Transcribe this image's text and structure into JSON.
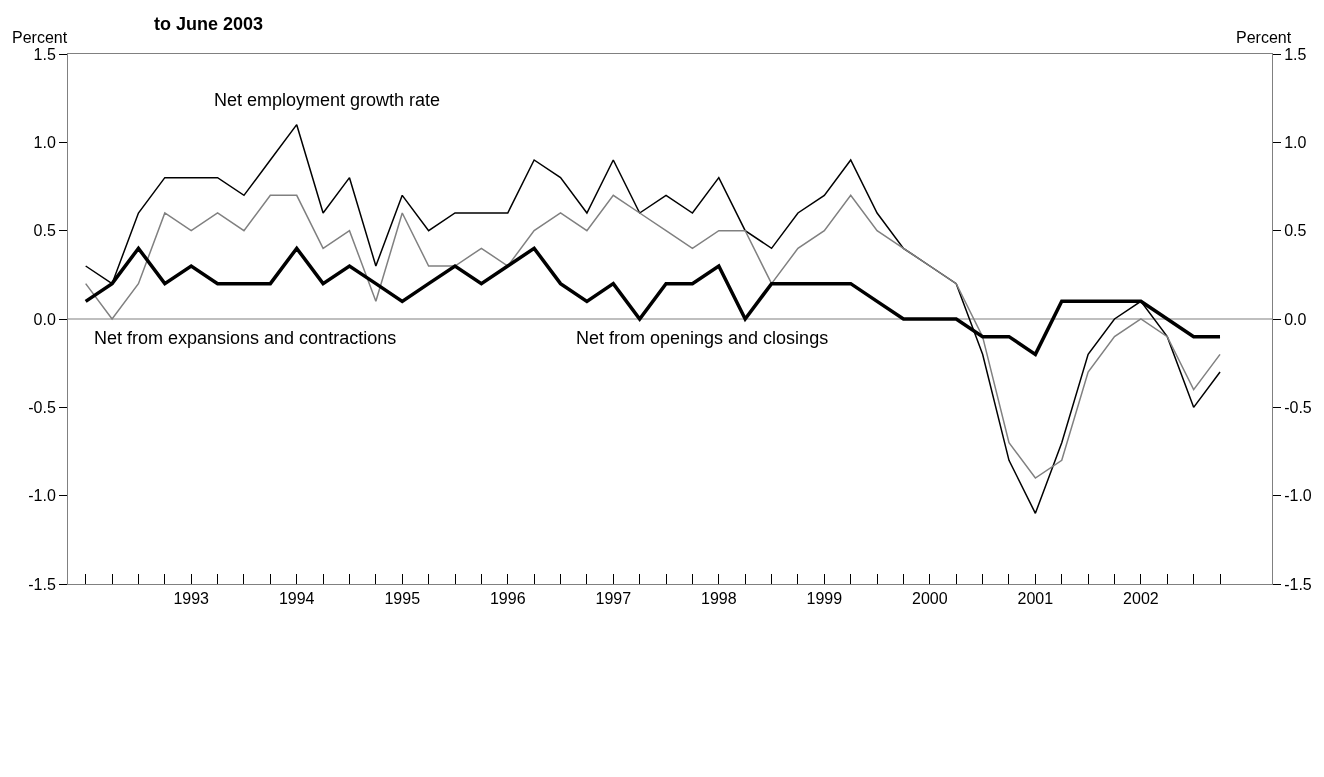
{
  "chart_data": {
    "type": "line",
    "title": "to June 2003",
    "ylabel": "Percent",
    "y2label": "Percent",
    "categories": [
      null,
      null,
      null,
      null,
      "1993",
      null,
      null,
      null,
      "1994",
      null,
      null,
      null,
      "1995",
      null,
      null,
      null,
      "1996",
      null,
      null,
      null,
      "1997",
      null,
      null,
      null,
      "1998",
      null,
      null,
      null,
      "1999",
      null,
      null,
      null,
      "2000",
      null,
      null,
      null,
      "2001",
      null,
      null,
      null,
      "2002",
      null,
      null,
      null
    ],
    "series": [
      {
        "name": "Net employment growth rate",
        "color": "#000000",
        "values": [
          0.3,
          0.2,
          0.6,
          0.8,
          0.8,
          0.8,
          0.7,
          0.9,
          1.1,
          0.6,
          0.8,
          0.3,
          0.7,
          0.5,
          0.6,
          0.6,
          0.6,
          0.9,
          0.8,
          0.6,
          0.9,
          0.6,
          0.7,
          0.6,
          0.8,
          0.5,
          0.4,
          0.6,
          0.7,
          0.9,
          0.6,
          0.4,
          0.3,
          0.2,
          -0.2,
          -0.8,
          -1.1,
          -0.7,
          -0.2,
          0.0,
          0.1,
          -0.1,
          -0.5,
          -0.3
        ]
      },
      {
        "name": "Net from expansions and contractions",
        "color": "#808080",
        "values": [
          0.2,
          0.0,
          0.2,
          0.6,
          0.5,
          0.6,
          0.5,
          0.7,
          0.7,
          0.4,
          0.5,
          0.1,
          0.6,
          0.3,
          0.3,
          0.4,
          0.3,
          0.5,
          0.6,
          0.5,
          0.7,
          0.6,
          0.5,
          0.4,
          0.5,
          0.5,
          0.2,
          0.4,
          0.5,
          0.7,
          0.5,
          0.4,
          0.3,
          0.2,
          -0.1,
          -0.7,
          -0.9,
          -0.8,
          -0.3,
          -0.1,
          0.0,
          -0.1,
          -0.4,
          -0.2
        ]
      },
      {
        "name": "Net from openings and closings",
        "color": "#000000",
        "values": [
          0.1,
          0.2,
          0.4,
          0.2,
          0.3,
          0.2,
          0.2,
          0.2,
          0.4,
          0.2,
          0.3,
          0.2,
          0.1,
          0.2,
          0.3,
          0.2,
          0.3,
          0.4,
          0.2,
          0.1,
          0.2,
          0.0,
          0.2,
          0.2,
          0.3,
          0.0,
          0.2,
          0.2,
          0.2,
          0.2,
          0.1,
          0.0,
          0.0,
          0.0,
          -0.1,
          -0.1,
          -0.2,
          0.1,
          0.1,
          0.1,
          0.1,
          0.0,
          -0.1,
          -0.1
        ]
      }
    ],
    "ylim": [
      -1.5,
      1.5
    ],
    "yticks": [
      {
        "value": -1.5,
        "label": "-1.5"
      },
      {
        "value": -1.0,
        "label": "-1.0"
      },
      {
        "value": -0.5,
        "label": "-0.5"
      },
      {
        "value": 0,
        "label": "0.0"
      },
      {
        "value": 0.5,
        "label": "0.5"
      },
      {
        "value": 1.0,
        "label": "1.0"
      },
      {
        "value": 1.5,
        "label": "1.5"
      }
    ],
    "y2lim": [
      -1.5,
      1.5
    ],
    "y2ticks": [
      {
        "value": -1.5,
        "label": "-1.5"
      },
      {
        "value": -1.0,
        "label": "-1.0"
      },
      {
        "value": -0.5,
        "label": "-0.5"
      },
      {
        "value": 0,
        "label": "0.0"
      },
      {
        "value": 0.5,
        "label": "0.5"
      },
      {
        "value": 1.0,
        "label": "1.0"
      },
      {
        "value": 1.5,
        "label": "1.5"
      }
    ],
    "ref_lines": [
      {
        "axis": "y",
        "value": 0,
        "color": "#808080"
      }
    ],
    "grid": false,
    "legend": false,
    "marker": "none",
    "line_style": "solid"
  }
}
